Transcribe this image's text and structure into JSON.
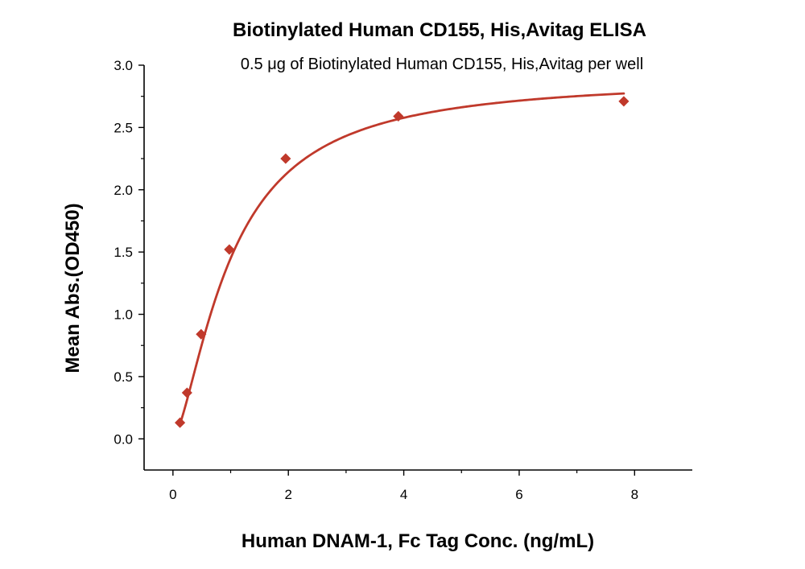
{
  "chart_data": {
    "type": "scatter",
    "title": "Biotinylated Human CD155, His,Avitag ELISA",
    "subtitle": "0.5 μg of Biotinylated Human CD155, His,Avitag per well",
    "xlabel": "Human DNAM-1, Fc Tag Conc. (ng/mL)",
    "ylabel": "Mean Abs.(OD450)",
    "xlim": [
      -0.5,
      9
    ],
    "ylim": [
      -0.25,
      3.0
    ],
    "x_ticks": [
      0,
      2,
      4,
      6,
      8
    ],
    "x_tick_labels": [
      "0",
      "2",
      "4",
      "6",
      "8"
    ],
    "y_ticks": [
      0.0,
      0.5,
      1.0,
      1.5,
      2.0,
      2.5,
      3.0
    ],
    "y_tick_labels": [
      "0.0",
      "0.5",
      "1.0",
      "1.5",
      "2.0",
      "2.5",
      "3.0"
    ],
    "grid": false,
    "legend": "none",
    "series": [
      {
        "x": [
          0.122,
          0.244,
          0.488,
          0.977,
          1.953,
          3.906,
          7.813
        ],
        "y": [
          0.13,
          0.37,
          0.84,
          1.52,
          2.25,
          2.59,
          2.71
        ],
        "marker": "diamond",
        "color": "#c0392b"
      }
    ],
    "fit_curve": {
      "model": "4PL",
      "color": "#c0392b",
      "x_start": 0.122,
      "x_end": 7.813,
      "y0": 0.0,
      "ymax": 2.9,
      "ec50": 1.0,
      "hill": 1.5
    }
  }
}
